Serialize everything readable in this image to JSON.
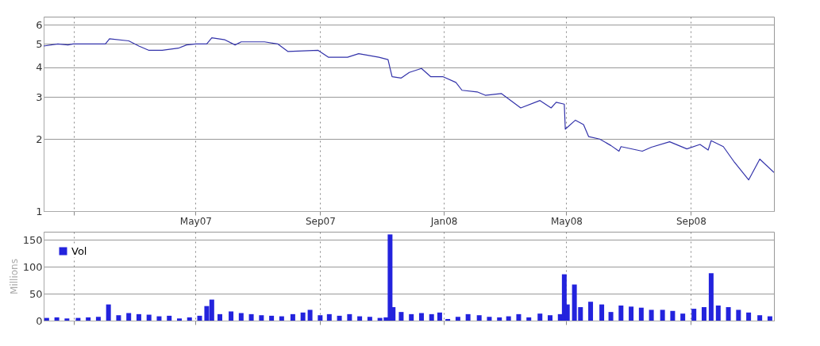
{
  "chart_data": [
    {
      "type": "line",
      "x": [
        "2006-12-02",
        "2006-12-16",
        "2006-12-26",
        "2006-12-31",
        "2007-02-01",
        "2007-02-05",
        "2007-02-24",
        "2007-03-06",
        "2007-03-16",
        "2007-03-29",
        "2007-04-14",
        "2007-04-22",
        "2007-05-01",
        "2007-05-12",
        "2007-05-17",
        "2007-05-30",
        "2007-06-09",
        "2007-06-15",
        "2007-07-08",
        "2007-07-21",
        "2007-07-31",
        "2007-08-30",
        "2007-09-09",
        "2007-09-28",
        "2007-10-09",
        "2007-10-29",
        "2007-11-07",
        "2007-11-09",
        "2007-11-11",
        "2007-11-20",
        "2007-11-28",
        "2007-12-10",
        "2007-12-19",
        "2007-12-31",
        "2008-01-13",
        "2008-01-19",
        "2008-02-03",
        "2008-02-11",
        "2008-02-27",
        "2008-03-17",
        "2008-04-05",
        "2008-04-16",
        "2008-04-21",
        "2008-04-29",
        "2008-04-30",
        "2008-05-10",
        "2008-05-18",
        "2008-05-23",
        "2008-06-03",
        "2008-06-14",
        "2008-06-22",
        "2008-06-24",
        "2008-07-15",
        "2008-07-24",
        "2008-08-11",
        "2008-08-28",
        "2008-09-10",
        "2008-09-18",
        "2008-09-21",
        "2008-10-03",
        "2008-10-14",
        "2008-10-28",
        "2008-11-08",
        "2008-11-22"
      ],
      "series": [
        {
          "color": "#3333aa",
          "values": [
            4.9,
            5.0,
            4.95,
            5.0,
            5.0,
            5.25,
            5.15,
            4.9,
            4.7,
            4.7,
            4.8,
            4.95,
            5.0,
            5.0,
            5.3,
            5.2,
            4.95,
            5.1,
            5.1,
            5.0,
            4.65,
            4.7,
            4.4,
            4.4,
            4.55,
            4.4,
            4.3,
            3.95,
            3.65,
            3.6,
            3.8,
            3.95,
            3.65,
            3.65,
            3.45,
            3.2,
            3.15,
            3.05,
            3.1,
            2.7,
            2.9,
            2.7,
            2.85,
            2.8,
            2.2,
            2.4,
            2.3,
            2.05,
            2.0,
            1.88,
            1.78,
            1.86,
            1.78,
            1.85,
            1.95,
            1.82,
            1.9,
            1.8,
            1.97,
            1.86,
            1.6,
            1.35,
            1.65,
            1.45
          ]
        }
      ],
      "xlim": [
        "2006-12-02",
        "2008-11-22"
      ],
      "xticks": [
        {
          "value": "2007-01-01",
          "label": null
        },
        {
          "value": "2007-05-01",
          "label": "May07"
        },
        {
          "value": "2007-09-01",
          "label": "Sep07"
        },
        {
          "value": "2008-01-01",
          "label": "Jan08"
        },
        {
          "value": "2008-05-01",
          "label": "May08"
        },
        {
          "value": "2008-09-01",
          "label": "Sep08"
        }
      ],
      "ylim": [
        1,
        6.5
      ],
      "yticks": [
        1,
        2,
        3,
        4,
        5,
        6
      ],
      "log": true,
      "grid": true
    },
    {
      "type": "bar",
      "ylabel": "Millions",
      "x": [
        "2006-12-05",
        "2006-12-15",
        "2006-12-25",
        "2007-01-05",
        "2007-01-15",
        "2007-01-25",
        "2007-02-04",
        "2007-02-14",
        "2007-02-24",
        "2007-03-06",
        "2007-03-16",
        "2007-03-26",
        "2007-04-05",
        "2007-04-15",
        "2007-04-25",
        "2007-05-05",
        "2007-05-12",
        "2007-05-17",
        "2007-05-25",
        "2007-06-05",
        "2007-06-15",
        "2007-06-25",
        "2007-07-05",
        "2007-07-15",
        "2007-07-25",
        "2007-08-05",
        "2007-08-15",
        "2007-08-22",
        "2007-09-01",
        "2007-09-10",
        "2007-09-20",
        "2007-09-30",
        "2007-10-10",
        "2007-10-20",
        "2007-10-30",
        "2007-11-05",
        "2007-11-09",
        "2007-11-12",
        "2007-11-20",
        "2007-11-30",
        "2007-12-10",
        "2007-12-20",
        "2007-12-28",
        "2008-01-05",
        "2008-01-15",
        "2008-01-25",
        "2008-02-05",
        "2008-02-15",
        "2008-02-25",
        "2008-03-05",
        "2008-03-15",
        "2008-03-25",
        "2008-04-05",
        "2008-04-15",
        "2008-04-25",
        "2008-04-29",
        "2008-05-02",
        "2008-05-09",
        "2008-05-15",
        "2008-05-25",
        "2008-06-05",
        "2008-06-14",
        "2008-06-24",
        "2008-07-04",
        "2008-07-14",
        "2008-07-24",
        "2008-08-04",
        "2008-08-14",
        "2008-08-24",
        "2008-09-04",
        "2008-09-14",
        "2008-09-21",
        "2008-09-28",
        "2008-10-08",
        "2008-10-18",
        "2008-10-28",
        "2008-11-08",
        "2008-11-18"
      ],
      "series": [
        {
          "name": "Vol",
          "color": "#2323dd",
          "values": [
            5,
            6,
            4,
            5,
            6,
            7,
            30,
            10,
            14,
            12,
            11,
            8,
            9,
            4,
            6,
            9,
            27,
            39,
            12,
            17,
            14,
            12,
            10,
            9,
            8,
            12,
            15,
            20,
            10,
            12,
            9,
            12,
            8,
            7,
            5,
            6,
            160,
            25,
            16,
            12,
            14,
            12,
            15,
            3,
            7,
            12,
            10,
            7,
            6,
            8,
            12,
            6,
            13,
            10,
            12,
            86,
            30,
            67,
            25,
            35,
            30,
            16,
            28,
            26,
            24,
            20,
            20,
            18,
            13,
            22,
            25,
            88,
            28,
            25,
            20,
            15,
            10,
            8
          ]
        }
      ],
      "xlim": [
        "2006-12-02",
        "2008-11-22"
      ],
      "xticks": [
        {
          "value": "2007-01-01",
          "label": null
        },
        {
          "value": "2007-05-01",
          "label": null
        },
        {
          "value": "2007-09-01",
          "label": null
        },
        {
          "value": "2008-01-01",
          "label": null
        },
        {
          "value": "2008-05-01",
          "label": null
        },
        {
          "value": "2008-09-01",
          "label": null
        }
      ],
      "ylim": [
        0,
        165
      ],
      "yticks": [
        0,
        50,
        100,
        150
      ],
      "grid": true,
      "legend": "top left",
      "tick_labels": "y"
    }
  ]
}
